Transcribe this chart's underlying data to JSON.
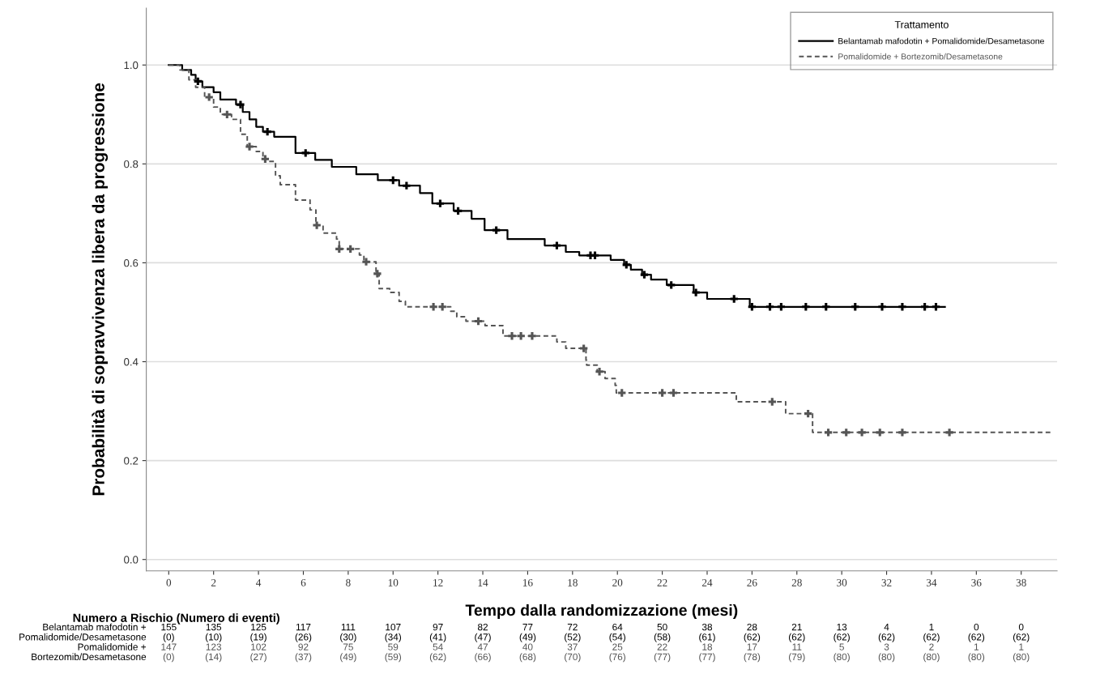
{
  "chart_data": [
    {
      "type": "line",
      "ylabel": "Probabilità di sopravvivenza libera da progressione",
      "xlabel": "Tempo dalla randomizzazione (mesi)",
      "legend_title": "Trattamento",
      "legend": "top right",
      "grid": "y",
      "xlim": [
        -1,
        39.6
      ],
      "xticks": [
        0,
        2,
        4,
        6,
        8,
        10,
        12,
        14,
        16,
        18,
        20,
        22,
        24,
        26,
        28,
        30,
        32,
        34,
        36,
        38
      ],
      "ylim": [
        -0.023,
        1.115
      ],
      "yticks": [
        {
          "value": 0,
          "label": "0.0"
        },
        {
          "value": 0.2,
          "label": "0.2"
        },
        {
          "value": 0.4,
          "label": "0.4"
        },
        {
          "value": 0.6,
          "label": "0.6"
        },
        {
          "value": 0.8,
          "label": "0.8"
        },
        {
          "value": 1,
          "label": "1.0"
        }
      ],
      "series": [
        {
          "name": "Belantamab mafodotin + Pomalidomide/Desametasone",
          "type": "step",
          "color": "#000000",
          "line_style": "solid",
          "x": [
            0,
            0.6,
            1.0,
            1.2,
            1.5,
            2.0,
            2.3,
            3.0,
            3.3,
            3.6,
            3.9,
            4.2,
            4.7,
            5.65,
            6.53,
            7.27,
            8.36,
            9.32,
            10.27,
            11.2,
            11.75,
            12.7,
            13.5,
            14.08,
            15.1,
            16.76,
            17.7,
            18.3,
            19.7,
            20.3,
            20.6,
            21.1,
            21.5,
            22.2,
            23.4,
            24.0,
            25.9,
            34.6
          ],
          "values": [
            1.0,
            0.99,
            0.98,
            0.967,
            0.955,
            0.945,
            0.93,
            0.92,
            0.905,
            0.89,
            0.875,
            0.865,
            0.855,
            0.822,
            0.808,
            0.794,
            0.779,
            0.767,
            0.756,
            0.741,
            0.72,
            0.705,
            0.689,
            0.666,
            0.648,
            0.635,
            0.622,
            0.615,
            0.606,
            0.596,
            0.586,
            0.576,
            0.566,
            0.555,
            0.54,
            0.527,
            0.511,
            0.511
          ]
        },
        {
          "name": "Pomalidomide + Bortezomib/Desametasone",
          "type": "step",
          "color": "#555555",
          "line_style": "dashed",
          "x": [
            0,
            0.5,
            0.9,
            1.2,
            1.6,
            2.0,
            2.3,
            2.8,
            3.2,
            3.5,
            3.9,
            4.2,
            4.4,
            4.76,
            4.97,
            5.65,
            6.3,
            6.56,
            6.88,
            7.48,
            7.6,
            8.5,
            8.7,
            9.24,
            9.38,
            9.85,
            10.27,
            10.55,
            12.57,
            12.84,
            13.25,
            14.1,
            14.9,
            17.3,
            17.7,
            18.6,
            18.63,
            19.1,
            19.45,
            19.9,
            19.95,
            25.3,
            27.5,
            28.7,
            39.3
          ],
          "values": [
            1.0,
            0.99,
            0.97,
            0.955,
            0.935,
            0.915,
            0.9,
            0.89,
            0.86,
            0.835,
            0.825,
            0.81,
            0.805,
            0.776,
            0.758,
            0.727,
            0.707,
            0.676,
            0.66,
            0.648,
            0.628,
            0.616,
            0.602,
            0.578,
            0.548,
            0.54,
            0.522,
            0.511,
            0.502,
            0.491,
            0.482,
            0.473,
            0.452,
            0.44,
            0.427,
            0.403,
            0.393,
            0.38,
            0.366,
            0.352,
            0.337,
            0.319,
            0.295,
            0.257,
            0.257
          ]
        },
        {
          "type": "scatter",
          "marker": "cross",
          "color": "#000000",
          "x": [
            1.3,
            3.2,
            4.4,
            6.1,
            10.0,
            10.6,
            12.1,
            12.9,
            14.6,
            17.3,
            18.8,
            19.0,
            20.4,
            21.2,
            22.4,
            23.5,
            25.2,
            26.0,
            26.8,
            27.3,
            28.4,
            29.3,
            30.6,
            31.8,
            32.7,
            33.7,
            34.2
          ],
          "values": [
            0.967,
            0.92,
            0.865,
            0.822,
            0.767,
            0.756,
            0.72,
            0.705,
            0.666,
            0.635,
            0.615,
            0.615,
            0.596,
            0.576,
            0.555,
            0.54,
            0.527,
            0.511,
            0.511,
            0.511,
            0.511,
            0.511,
            0.511,
            0.511,
            0.511,
            0.511,
            0.511
          ]
        },
        {
          "type": "scatter",
          "marker": "cross",
          "color": "#555555",
          "x": [
            1.8,
            2.6,
            3.6,
            4.3,
            6.6,
            7.6,
            8.1,
            8.8,
            9.3,
            11.8,
            12.2,
            13.8,
            15.3,
            15.7,
            16.2,
            18.5,
            19.2,
            20.2,
            22.0,
            22.5,
            26.9,
            28.5,
            29.4,
            30.2,
            30.9,
            31.7,
            32.7,
            34.8
          ],
          "values": [
            0.935,
            0.9,
            0.835,
            0.81,
            0.676,
            0.628,
            0.628,
            0.602,
            0.578,
            0.511,
            0.511,
            0.482,
            0.452,
            0.452,
            0.452,
            0.427,
            0.38,
            0.337,
            0.337,
            0.337,
            0.319,
            0.295,
            0.257,
            0.257,
            0.257,
            0.257,
            0.257,
            0.257
          ]
        }
      ]
    },
    {
      "type": "other",
      "title": "Numero a Rischio (Numero di eventi)",
      "y_categories": [
        "Belantamab mafodotin +",
        "Pomalidomide/Desametasone",
        "Pomalidomide +",
        "Bortezomib/Desametasone"
      ],
      "colors": [
        "#000000",
        "#000000",
        "#555555",
        "#555555"
      ],
      "cell_labels": [
        [
          "155",
          "135",
          "125",
          "117",
          "111",
          "107",
          "97",
          "82",
          "77",
          "72",
          "64",
          "50",
          "38",
          "28",
          "21",
          "13",
          "4",
          "1",
          "0",
          "0"
        ],
        [
          "(0)",
          "(10)",
          "(19)",
          "(26)",
          "(30)",
          "(34)",
          "(41)",
          "(47)",
          "(49)",
          "(52)",
          "(54)",
          "(58)",
          "(61)",
          "(62)",
          "(62)",
          "(62)",
          "(62)",
          "(62)",
          "(62)",
          "(62)"
        ],
        [
          "147",
          "123",
          "102",
          "92",
          "75",
          "59",
          "54",
          "47",
          "40",
          "37",
          "25",
          "22",
          "18",
          "17",
          "11",
          "5",
          "3",
          "2",
          "1",
          "1"
        ],
        [
          "(0)",
          "(14)",
          "(27)",
          "(37)",
          "(49)",
          "(59)",
          "(62)",
          "(66)",
          "(68)",
          "(70)",
          "(76)",
          "(77)",
          "(77)",
          "(78)",
          "(79)",
          "(80)",
          "(80)",
          "(80)",
          "(80)",
          "(80)"
        ]
      ]
    }
  ]
}
